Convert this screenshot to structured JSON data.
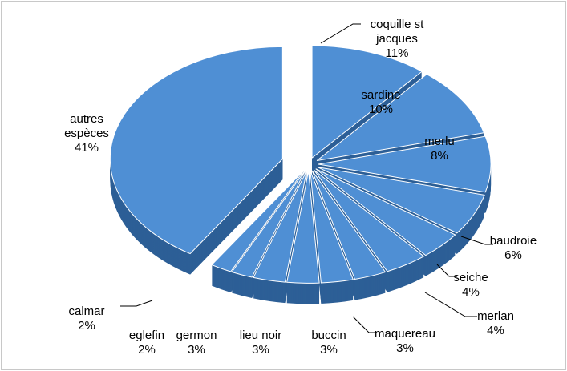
{
  "chart_data": {
    "type": "pie",
    "categories": [
      "coquille st jacques",
      "sardine",
      "merlu",
      "baudroie",
      "seiche",
      "merlan",
      "maquereau",
      "buccin",
      "lieu noir",
      "germon",
      "eglefin",
      "calmar",
      "autres espèces"
    ],
    "values": [
      11,
      10,
      8,
      6,
      4,
      4,
      3,
      3,
      3,
      3,
      2,
      2,
      41
    ],
    "value_labels": [
      "11%",
      "10%",
      "8%",
      "6%",
      "4%",
      "4%",
      "3%",
      "3%",
      "3%",
      "3%",
      "2%",
      "2%",
      "41%"
    ],
    "color": "#4f8fd4"
  }
}
